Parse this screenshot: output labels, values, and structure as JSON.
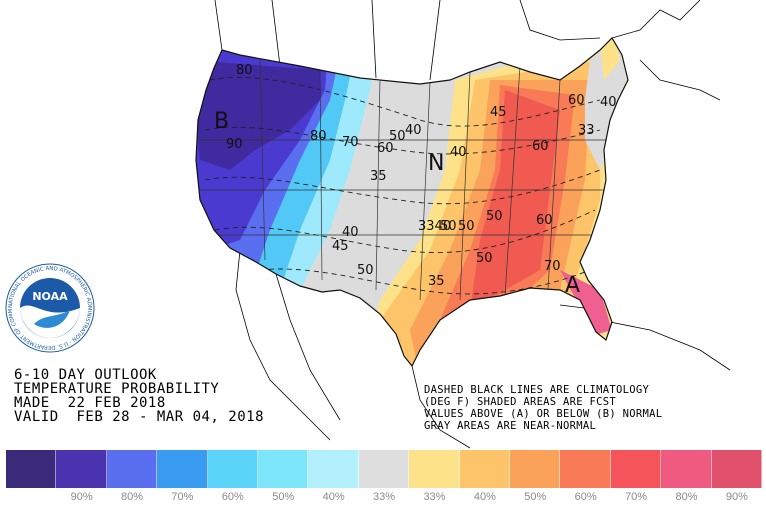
{
  "title": {
    "line1": "6-10 DAY OUTLOOK",
    "line2": "TEMPERATURE PROBABILITY",
    "line3": "MADE  22 FEB 2018",
    "line4": "VALID  FEB 28 - MAR 04, 2018"
  },
  "notes": {
    "line1": "DASHED BLACK LINES ARE CLIMATOLOGY",
    "line2": "(DEG F) SHADED AREAS ARE FCST",
    "line3": "VALUES ABOVE (A) OR BELOW (B) NORMAL",
    "line4": "GRAY AREAS ARE NEAR-NORMAL"
  },
  "logo": {
    "text": "NOAA",
    "ring_text": "NATIONAL OCEANIC AND ATMOSPHERIC ADMINISTRATION · U.S. DEPARTMENT OF COMMERCE"
  },
  "map_labels": {
    "below_marker": "B",
    "above_marker": "A",
    "normal_marker": "N",
    "contours": [
      {
        "id": "c1",
        "text": "80"
      },
      {
        "id": "c2",
        "text": "90"
      },
      {
        "id": "c3",
        "text": "80"
      },
      {
        "id": "c4",
        "text": "70"
      },
      {
        "id": "c5",
        "text": "60"
      },
      {
        "id": "c6",
        "text": "50"
      },
      {
        "id": "c7",
        "text": "40"
      },
      {
        "id": "c8",
        "text": "35"
      },
      {
        "id": "c9",
        "text": "40"
      },
      {
        "id": "c10",
        "text": "45"
      },
      {
        "id": "c11",
        "text": "50"
      },
      {
        "id": "c12",
        "text": "3340"
      },
      {
        "id": "c13",
        "text": "50"
      },
      {
        "id": "c14",
        "text": "35"
      },
      {
        "id": "c15",
        "text": "40"
      },
      {
        "id": "c16",
        "text": "50"
      },
      {
        "id": "c17",
        "text": "60"
      },
      {
        "id": "c18",
        "text": "60"
      },
      {
        "id": "c19",
        "text": "70"
      },
      {
        "id": "c20",
        "text": "33"
      },
      {
        "id": "c21",
        "text": "40"
      },
      {
        "id": "c22",
        "text": "45"
      },
      {
        "id": "c23",
        "text": "50"
      },
      {
        "id": "c24",
        "text": "60"
      },
      {
        "id": "c25",
        "text": "50"
      }
    ]
  },
  "legend": [
    {
      "color": "#3a2a7a",
      "label": ""
    },
    {
      "color": "#4b33b0",
      "label": "90%"
    },
    {
      "color": "#5a6ff0",
      "label": "80%"
    },
    {
      "color": "#3a9cf0",
      "label": "70%"
    },
    {
      "color": "#5ad4f8",
      "label": "60%"
    },
    {
      "color": "#7ee6fb",
      "label": "50%"
    },
    {
      "color": "#b2f1fc",
      "label": "40%"
    },
    {
      "color": "#dedede",
      "label": "33%"
    },
    {
      "color": "#fde28a",
      "label": "33%"
    },
    {
      "color": "#fdc46a",
      "label": "40%"
    },
    {
      "color": "#fba25a",
      "label": "50%"
    },
    {
      "color": "#f87a56",
      "label": "60%"
    },
    {
      "color": "#f5545a",
      "label": "70%"
    },
    {
      "color": "#f05a80",
      "label": "80%"
    },
    {
      "color": "#e0506a",
      "label": "90%"
    }
  ],
  "colors": {
    "below_deep": "#3f2aa0",
    "below_mid": "#5a5ae8",
    "below_light": "#47b6f3",
    "below_pale": "#8ee3fb",
    "near_normal": "#dcdcdc",
    "above_pale": "#fdd98a",
    "above_mid": "#fbb25e",
    "above_strong": "#f6865a",
    "above_deep": "#f05a50",
    "above_max": "#ef5f8f"
  }
}
